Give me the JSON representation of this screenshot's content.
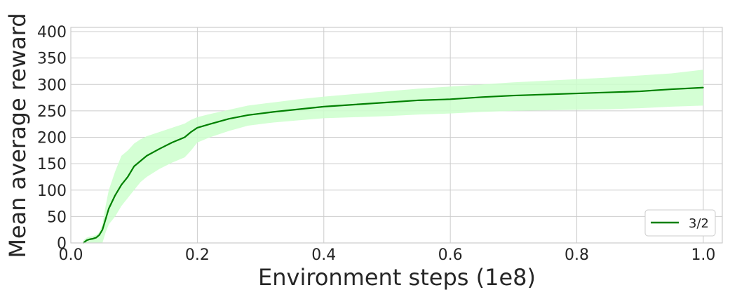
{
  "chart_data": {
    "type": "line",
    "title": "",
    "xlabel": "Environment steps (1e8)",
    "ylabel": "Mean average reward",
    "xlim": [
      0.0,
      1.03
    ],
    "ylim": [
      0,
      408
    ],
    "x_ticks": [
      "0.0",
      "0.2",
      "0.4",
      "0.6",
      "0.8",
      "1.0"
    ],
    "y_ticks": [
      "0",
      "50",
      "100",
      "150",
      "200",
      "250",
      "300",
      "350",
      "400"
    ],
    "grid": true,
    "legend_placement": "lower-right",
    "series": [
      {
        "name": "3/2",
        "color": "#008000",
        "band_color": "#ccffcc",
        "x": [
          0.02,
          0.025,
          0.03,
          0.035,
          0.04,
          0.045,
          0.05,
          0.055,
          0.06,
          0.07,
          0.08,
          0.09,
          0.1,
          0.11,
          0.12,
          0.14,
          0.16,
          0.18,
          0.19,
          0.2,
          0.22,
          0.25,
          0.28,
          0.32,
          0.36,
          0.4,
          0.45,
          0.5,
          0.55,
          0.6,
          0.65,
          0.7,
          0.75,
          0.8,
          0.85,
          0.9,
          0.95,
          1.0
        ],
        "y": [
          0,
          5,
          7,
          8,
          10,
          15,
          25,
          45,
          65,
          90,
          110,
          125,
          145,
          155,
          165,
          178,
          190,
          200,
          210,
          218,
          225,
          235,
          242,
          248,
          253,
          258,
          262,
          266,
          270,
          272,
          276,
          279,
          281,
          283,
          285,
          287,
          291,
          294
        ],
        "lower": [
          0,
          0,
          0,
          0,
          0,
          0,
          0,
          20,
          35,
          50,
          70,
          85,
          100,
          115,
          125,
          140,
          152,
          162,
          175,
          190,
          200,
          212,
          222,
          228,
          232,
          236,
          238,
          240,
          243,
          245,
          248,
          250,
          251,
          252,
          253,
          255,
          258,
          260
        ],
        "upper": [
          5,
          10,
          12,
          13,
          15,
          20,
          35,
          70,
          100,
          135,
          165,
          175,
          188,
          196,
          202,
          210,
          218,
          226,
          233,
          238,
          244,
          252,
          260,
          266,
          272,
          277,
          282,
          287,
          292,
          296,
          300,
          304,
          307,
          310,
          313,
          317,
          321,
          328
        ]
      }
    ]
  }
}
